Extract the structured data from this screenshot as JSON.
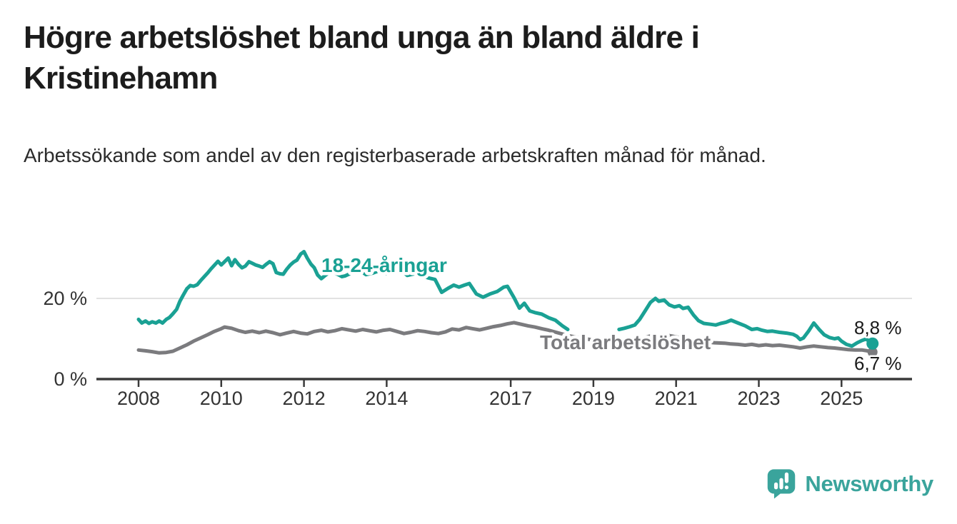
{
  "header": {
    "title": "Högre arbetslöshet bland unga än bland äldre i Kristinehamn",
    "subtitle": "Arbetssökande som andel av den registerbaserade arbetskraften månad för månad."
  },
  "footer": {
    "brand": "Newsworthy",
    "logo_icon": "newsworthy-speech-bubble-bar-chart-icon",
    "brand_color": "#3aa49c"
  },
  "colors": {
    "youth_line": "#1aa194",
    "total_line": "#7b7b7e",
    "axis": "#3a3a3a",
    "grid": "#d9d9d9",
    "tick_text": "#333333",
    "end_label_text": "#1a1a1a",
    "background": "#ffffff"
  },
  "chart_data": {
    "type": "line",
    "title": "Högre arbetslöshet bland unga än bland äldre i Kristinehamn",
    "subtitle": "Arbetssökande som andel av den registerbaserade arbetskraften månad för månad.",
    "unit": "%",
    "grid": "single horizontal gridline at 20 %",
    "legend_position": "inline labels on lines",
    "x_axis": {
      "ticks": [
        2008,
        2010,
        2012,
        2014,
        2017,
        2019,
        2021,
        2023,
        2025
      ],
      "range": [
        2007.0,
        2026.8
      ]
    },
    "y_axis": {
      "range": [
        0,
        34
      ],
      "ticks": [
        {
          "value": 0,
          "label": "0 %",
          "grid": false
        },
        {
          "value": 20,
          "label": "20 %",
          "grid": true
        }
      ]
    },
    "series": [
      {
        "id": "total",
        "name": "Total arbetslöshet",
        "color": "#7b7b7e",
        "end_label": "6,7 %",
        "end_value": 6.7,
        "segments": [
          [
            [
              2008.0,
              7.2
            ],
            [
              2008.17,
              7.0
            ],
            [
              2008.33,
              6.8
            ],
            [
              2008.5,
              6.5
            ],
            [
              2008.67,
              6.6
            ],
            [
              2008.83,
              6.9
            ],
            [
              2009.0,
              7.7
            ],
            [
              2009.17,
              8.5
            ],
            [
              2009.33,
              9.4
            ],
            [
              2009.5,
              10.2
            ],
            [
              2009.67,
              11.0
            ],
            [
              2009.83,
              11.8
            ],
            [
              2010.0,
              12.5
            ],
            [
              2010.08,
              12.9
            ],
            [
              2010.25,
              12.6
            ],
            [
              2010.42,
              12.0
            ],
            [
              2010.58,
              11.6
            ],
            [
              2010.75,
              11.9
            ],
            [
              2010.92,
              11.5
            ],
            [
              2011.08,
              11.9
            ],
            [
              2011.25,
              11.5
            ],
            [
              2011.42,
              11.0
            ],
            [
              2011.58,
              11.4
            ],
            [
              2011.75,
              11.8
            ],
            [
              2011.92,
              11.4
            ],
            [
              2012.08,
              11.2
            ],
            [
              2012.25,
              11.8
            ],
            [
              2012.42,
              12.1
            ],
            [
              2012.58,
              11.7
            ],
            [
              2012.75,
              12.0
            ],
            [
              2012.92,
              12.5
            ],
            [
              2013.08,
              12.2
            ],
            [
              2013.25,
              11.9
            ],
            [
              2013.42,
              12.3
            ],
            [
              2013.58,
              12.0
            ],
            [
              2013.75,
              11.7
            ],
            [
              2013.92,
              12.1
            ],
            [
              2014.08,
              12.3
            ],
            [
              2014.25,
              11.8
            ],
            [
              2014.42,
              11.3
            ],
            [
              2014.58,
              11.6
            ],
            [
              2014.75,
              12.0
            ],
            [
              2014.92,
              11.8
            ],
            [
              2015.08,
              11.5
            ],
            [
              2015.25,
              11.3
            ],
            [
              2015.42,
              11.7
            ],
            [
              2015.58,
              12.4
            ],
            [
              2015.75,
              12.2
            ],
            [
              2015.92,
              12.8
            ],
            [
              2016.08,
              12.5
            ],
            [
              2016.25,
              12.2
            ],
            [
              2016.42,
              12.6
            ],
            [
              2016.58,
              13.0
            ],
            [
              2016.75,
              13.3
            ],
            [
              2016.92,
              13.7
            ],
            [
              2017.08,
              14.0
            ],
            [
              2017.25,
              13.6
            ],
            [
              2017.42,
              13.2
            ],
            [
              2017.58,
              12.9
            ],
            [
              2017.75,
              12.5
            ],
            [
              2017.92,
              12.1
            ],
            [
              2018.17,
              11.4
            ],
            [
              2018.42,
              10.7
            ],
            [
              2018.67,
              10.2
            ],
            [
              2018.92,
              9.8
            ],
            [
              2019.17,
              9.5
            ],
            [
              2019.42,
              9.3
            ],
            [
              2019.67,
              9.3
            ],
            [
              2019.92,
              9.5
            ],
            [
              2020.17,
              10.1
            ],
            [
              2020.42,
              10.8
            ],
            [
              2020.67,
              11.1
            ],
            [
              2020.92,
              10.6
            ],
            [
              2021.17,
              10.1
            ],
            [
              2021.42,
              9.7
            ],
            [
              2021.67,
              9.3
            ],
            [
              2021.92,
              9.0
            ],
            [
              2022.17,
              8.9
            ],
            [
              2022.33,
              8.7
            ],
            [
              2022.5,
              8.6
            ],
            [
              2022.67,
              8.4
            ],
            [
              2022.83,
              8.6
            ],
            [
              2023.0,
              8.3
            ],
            [
              2023.17,
              8.5
            ],
            [
              2023.33,
              8.3
            ],
            [
              2023.5,
              8.4
            ],
            [
              2023.67,
              8.2
            ],
            [
              2023.83,
              8.0
            ],
            [
              2024.0,
              7.7
            ],
            [
              2024.17,
              8.0
            ],
            [
              2024.33,
              8.2
            ],
            [
              2024.5,
              8.0
            ],
            [
              2024.67,
              7.8
            ],
            [
              2024.83,
              7.7
            ],
            [
              2025.0,
              7.5
            ],
            [
              2025.17,
              7.3
            ],
            [
              2025.33,
              7.2
            ],
            [
              2025.5,
              7.2
            ],
            [
              2025.62,
              7.0
            ],
            [
              2025.75,
              6.7
            ]
          ]
        ]
      },
      {
        "id": "youth",
        "name": "18-24-åringar",
        "color": "#1aa194",
        "end_label": "8,8 %",
        "end_value": 8.8,
        "segments": [
          [
            [
              2008.0,
              14.8
            ],
            [
              2008.08,
              13.9
            ],
            [
              2008.17,
              14.4
            ],
            [
              2008.25,
              13.8
            ],
            [
              2008.33,
              14.2
            ],
            [
              2008.42,
              13.9
            ],
            [
              2008.5,
              14.4
            ],
            [
              2008.58,
              13.9
            ],
            [
              2008.67,
              14.8
            ],
            [
              2008.75,
              15.3
            ],
            [
              2008.83,
              16.2
            ],
            [
              2008.92,
              17.3
            ],
            [
              2009.0,
              19.3
            ],
            [
              2009.08,
              20.8
            ],
            [
              2009.17,
              22.4
            ],
            [
              2009.25,
              23.2
            ],
            [
              2009.33,
              23.0
            ],
            [
              2009.42,
              23.4
            ],
            [
              2009.5,
              24.4
            ],
            [
              2009.58,
              25.3
            ],
            [
              2009.67,
              26.3
            ],
            [
              2009.75,
              27.3
            ],
            [
              2009.83,
              28.2
            ],
            [
              2009.92,
              29.2
            ],
            [
              2010.0,
              28.3
            ],
            [
              2010.08,
              29.1
            ],
            [
              2010.17,
              30.0
            ],
            [
              2010.25,
              28.1
            ],
            [
              2010.33,
              29.6
            ],
            [
              2010.42,
              28.4
            ],
            [
              2010.5,
              27.6
            ],
            [
              2010.58,
              28.0
            ],
            [
              2010.67,
              29.1
            ],
            [
              2010.75,
              28.7
            ],
            [
              2010.83,
              28.3
            ],
            [
              2010.92,
              28.0
            ],
            [
              2011.0,
              27.7
            ],
            [
              2011.08,
              28.4
            ],
            [
              2011.17,
              29.1
            ],
            [
              2011.25,
              28.6
            ],
            [
              2011.33,
              26.4
            ],
            [
              2011.42,
              26.1
            ],
            [
              2011.5,
              26.0
            ],
            [
              2011.58,
              27.2
            ],
            [
              2011.67,
              28.3
            ],
            [
              2011.75,
              29.0
            ],
            [
              2011.83,
              29.5
            ],
            [
              2011.92,
              31.0
            ],
            [
              2012.0,
              31.6
            ],
            [
              2012.08,
              30.0
            ],
            [
              2012.17,
              28.5
            ],
            [
              2012.25,
              27.6
            ],
            [
              2012.33,
              25.8
            ],
            [
              2012.42,
              24.9
            ],
            [
              2012.5,
              25.6
            ],
            [
              2012.58,
              26.2
            ],
            [
              2012.67,
              26.9
            ],
            [
              2012.75,
              26.3
            ],
            [
              2012.83,
              25.9
            ],
            [
              2012.92,
              25.4
            ],
            [
              2013.0,
              25.6
            ],
            [
              2013.17,
              26.4
            ],
            [
              2013.33,
              27.1
            ],
            [
              2013.5,
              25.9
            ],
            [
              2013.67,
              26.3
            ],
            [
              2013.83,
              26.9
            ],
            [
              2014.0,
              26.2
            ],
            [
              2014.17,
              26.8
            ],
            [
              2014.33,
              27.2
            ],
            [
              2014.5,
              25.7
            ],
            [
              2014.67,
              26.1
            ],
            [
              2014.83,
              25.8
            ],
            [
              2015.0,
              25.1
            ],
            [
              2015.17,
              24.7
            ],
            [
              2015.33,
              21.5
            ],
            [
              2015.5,
              22.6
            ],
            [
              2015.62,
              23.3
            ],
            [
              2015.75,
              22.8
            ],
            [
              2015.88,
              23.3
            ],
            [
              2016.0,
              23.7
            ],
            [
              2016.17,
              21.1
            ],
            [
              2016.33,
              20.3
            ],
            [
              2016.5,
              21.1
            ],
            [
              2016.67,
              21.7
            ],
            [
              2016.83,
              22.8
            ],
            [
              2016.92,
              23.0
            ],
            [
              2017.08,
              20.2
            ],
            [
              2017.21,
              17.6
            ],
            [
              2017.33,
              18.8
            ],
            [
              2017.46,
              16.9
            ],
            [
              2017.58,
              16.5
            ],
            [
              2017.75,
              16.1
            ],
            [
              2017.92,
              15.2
            ],
            [
              2018.08,
              14.6
            ],
            [
              2018.25,
              13.2
            ],
            [
              2018.38,
              12.3
            ]
          ],
          [
            [
              2019.62,
              12.3
            ],
            [
              2019.75,
              12.6
            ],
            [
              2019.88,
              13.0
            ],
            [
              2020.0,
              13.4
            ],
            [
              2020.12,
              14.8
            ],
            [
              2020.25,
              16.9
            ],
            [
              2020.38,
              19.0
            ],
            [
              2020.5,
              20.0
            ],
            [
              2020.58,
              19.3
            ],
            [
              2020.71,
              19.6
            ],
            [
              2020.83,
              18.4
            ],
            [
              2020.96,
              17.9
            ],
            [
              2021.08,
              18.2
            ],
            [
              2021.17,
              17.5
            ],
            [
              2021.29,
              17.8
            ],
            [
              2021.42,
              15.9
            ],
            [
              2021.54,
              14.5
            ],
            [
              2021.67,
              13.8
            ],
            [
              2021.83,
              13.6
            ],
            [
              2021.96,
              13.4
            ],
            [
              2022.08,
              13.8
            ],
            [
              2022.21,
              14.1
            ],
            [
              2022.33,
              14.6
            ],
            [
              2022.5,
              13.9
            ],
            [
              2022.67,
              13.2
            ],
            [
              2022.83,
              12.3
            ],
            [
              2022.96,
              12.5
            ],
            [
              2023.08,
              12.1
            ],
            [
              2023.21,
              11.8
            ],
            [
              2023.33,
              11.9
            ],
            [
              2023.5,
              11.6
            ],
            [
              2023.67,
              11.4
            ],
            [
              2023.83,
              11.1
            ],
            [
              2023.92,
              10.6
            ],
            [
              2024.0,
              9.8
            ],
            [
              2024.08,
              10.2
            ],
            [
              2024.21,
              12.0
            ],
            [
              2024.33,
              13.9
            ],
            [
              2024.46,
              12.3
            ],
            [
              2024.58,
              11.0
            ],
            [
              2024.71,
              10.3
            ],
            [
              2024.83,
              10.0
            ],
            [
              2024.92,
              10.2
            ],
            [
              2025.0,
              9.4
            ],
            [
              2025.12,
              8.6
            ],
            [
              2025.25,
              8.2
            ],
            [
              2025.38,
              9.0
            ],
            [
              2025.5,
              9.6
            ],
            [
              2025.58,
              9.9
            ],
            [
              2025.67,
              9.5
            ],
            [
              2025.75,
              8.8
            ]
          ]
        ]
      }
    ]
  }
}
